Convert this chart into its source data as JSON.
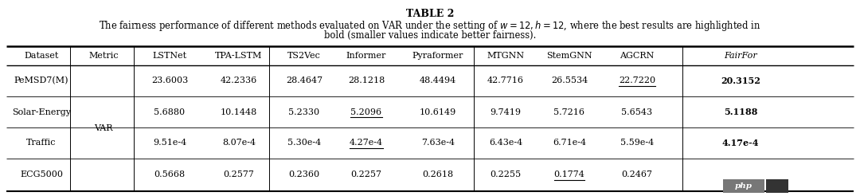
{
  "title": "TABLE 2",
  "subtitle1": "The fairness performance of different methods evaluated on VAR under the setting of $w = 12, h = 12$, where the best results are highlighted in",
  "subtitle2": "bold (smaller values indicate better fairness).",
  "col_headers": [
    "Dataset",
    "Metric",
    "LSTNet",
    "TPA-LSTM",
    "TS2Vec",
    "Informer",
    "Pyraformer",
    "MTGNN",
    "StemGNN",
    "AGCRN",
    "FairFor"
  ],
  "rows": [
    {
      "dataset": "PeMSD7(M)",
      "metric": "",
      "values": [
        "23.6003",
        "42.2336",
        "28.4647",
        "28.1218",
        "48.4494",
        "42.7716",
        "26.5534",
        "22.7220",
        "20.3152"
      ],
      "underline": [
        false,
        false,
        false,
        false,
        false,
        false,
        false,
        true,
        false
      ],
      "bold": [
        false,
        false,
        false,
        false,
        false,
        false,
        false,
        false,
        true
      ]
    },
    {
      "dataset": "Solar-Energy",
      "metric": "VAR",
      "values": [
        "5.6880",
        "10.1448",
        "5.2330",
        "5.2096",
        "10.6149",
        "9.7419",
        "5.7216",
        "5.6543",
        "5.1188"
      ],
      "underline": [
        false,
        false,
        false,
        true,
        false,
        false,
        false,
        false,
        false
      ],
      "bold": [
        false,
        false,
        false,
        false,
        false,
        false,
        false,
        false,
        true
      ]
    },
    {
      "dataset": "Traffic",
      "metric": "",
      "values": [
        "9.51e-4",
        "8.07e-4",
        "5.30e-4",
        "4.27e-4",
        "7.63e-4",
        "6.43e-4",
        "6.71e-4",
        "5.59e-4",
        "4.17e-4"
      ],
      "underline": [
        false,
        false,
        false,
        true,
        false,
        false,
        false,
        false,
        false
      ],
      "bold": [
        false,
        false,
        false,
        false,
        false,
        false,
        false,
        false,
        true
      ]
    },
    {
      "dataset": "ECG5000",
      "metric": "",
      "values": [
        "0.5668",
        "0.2577",
        "0.2360",
        "0.2257",
        "0.2618",
        "0.2255",
        "0.1774",
        "0.2467",
        ""
      ],
      "underline": [
        false,
        false,
        false,
        false,
        false,
        false,
        true,
        false,
        false
      ],
      "bold": [
        false,
        false,
        false,
        false,
        false,
        false,
        false,
        false,
        false
      ]
    }
  ],
  "bg_color": "#ffffff",
  "font_size": 8.0,
  "title_font_size": 9.0,
  "subtitle_font_size": 8.3
}
